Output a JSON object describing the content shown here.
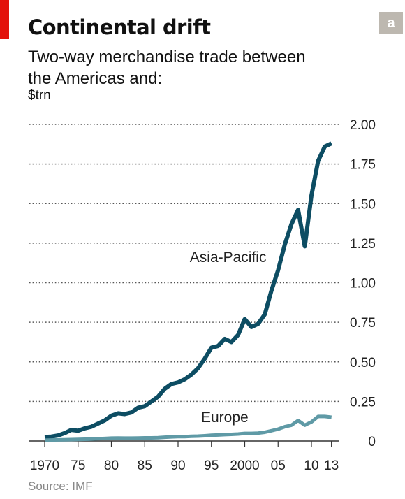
{
  "title": "Continental drift",
  "subtitle": "Two-way merchandise trade between the Americas and:",
  "unit": "$trn",
  "badge": "a",
  "source": "Source: IMF",
  "colors": {
    "asia": "#0d4d63",
    "europe": "#5f9aa6",
    "brand_red": "#e3120b"
  },
  "chart_data": {
    "type": "line",
    "title": "Continental drift",
    "ylabel": "$trn",
    "ylim": [
      0,
      2.0
    ],
    "xlim": [
      1970,
      2013
    ],
    "yticks": [
      0,
      0.25,
      0.5,
      0.75,
      1.0,
      1.25,
      1.5,
      1.75,
      2.0
    ],
    "ytick_labels": [
      "0",
      "0.25",
      "0.50",
      "0.75",
      "1.00",
      "1.25",
      "1.50",
      "1.75",
      "2.00"
    ],
    "xticks": [
      1970,
      1975,
      1980,
      1985,
      1990,
      1995,
      2000,
      2005,
      2010,
      2013
    ],
    "xtick_labels": [
      "1970",
      "75",
      "80",
      "85",
      "90",
      "95",
      "2000",
      "05",
      "10",
      "13"
    ],
    "grid": "horizontal dotted",
    "legend": "inline labels",
    "x": [
      1970,
      1971,
      1972,
      1973,
      1974,
      1975,
      1976,
      1977,
      1978,
      1979,
      1980,
      1981,
      1982,
      1983,
      1984,
      1985,
      1986,
      1987,
      1988,
      1989,
      1990,
      1991,
      1992,
      1993,
      1994,
      1995,
      1996,
      1997,
      1998,
      1999,
      2000,
      2001,
      2002,
      2003,
      2004,
      2005,
      2006,
      2007,
      2008,
      2009,
      2010,
      2011,
      2012,
      2013
    ],
    "series": [
      {
        "name": "Asia-Pacific",
        "values": [
          0.025,
          0.028,
          0.035,
          0.05,
          0.07,
          0.065,
          0.08,
          0.09,
          0.11,
          0.13,
          0.16,
          0.175,
          0.17,
          0.18,
          0.21,
          0.22,
          0.25,
          0.28,
          0.33,
          0.36,
          0.37,
          0.39,
          0.42,
          0.46,
          0.52,
          0.59,
          0.6,
          0.645,
          0.625,
          0.67,
          0.77,
          0.72,
          0.74,
          0.8,
          0.95,
          1.08,
          1.24,
          1.37,
          1.46,
          1.23,
          1.55,
          1.77,
          1.86,
          1.88
        ]
      },
      {
        "name": "Europe",
        "values": [
          0.005,
          0.006,
          0.007,
          0.008,
          0.009,
          0.01,
          0.011,
          0.012,
          0.014,
          0.016,
          0.018,
          0.019,
          0.018,
          0.018,
          0.019,
          0.02,
          0.02,
          0.021,
          0.024,
          0.026,
          0.028,
          0.028,
          0.03,
          0.031,
          0.033,
          0.036,
          0.038,
          0.04,
          0.042,
          0.044,
          0.048,
          0.048,
          0.05,
          0.055,
          0.065,
          0.075,
          0.09,
          0.1,
          0.13,
          0.1,
          0.12,
          0.155,
          0.155,
          0.15
        ]
      }
    ],
    "annotations": [
      {
        "text": "Asia-Pacific",
        "x": 1997.5,
        "y": 1.13
      },
      {
        "text": "Europe",
        "x": 1997,
        "y": 0.12
      }
    ]
  }
}
